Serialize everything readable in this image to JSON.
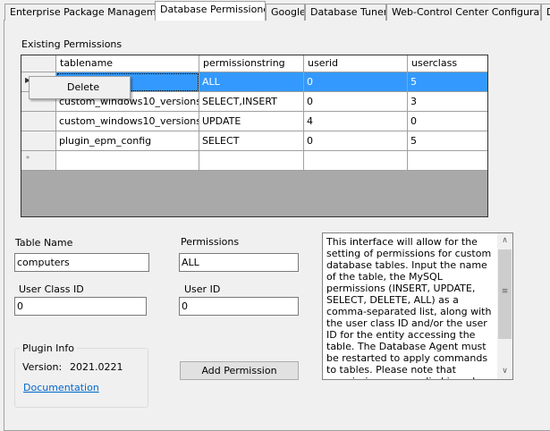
{
  "tabs": [
    {
      "label": "Enterprise Package Management",
      "selected": false
    },
    {
      "label": "Database Permissioner",
      "selected": true
    },
    {
      "label": "Google",
      "selected": false
    },
    {
      "label": "Database Tuner",
      "selected": false
    },
    {
      "label": "Web-Control Center Configuration",
      "selected": false
    },
    {
      "label": "D",
      "selected": false
    }
  ],
  "existing_label": "Existing Permissions",
  "grid": {
    "columns": [
      "tablename",
      "permissionstring",
      "userid",
      "userclass"
    ],
    "rows": [
      [
        "",
        "ALL",
        "0",
        "5"
      ],
      [
        "custom_windows10_versions",
        "SELECT,INSERT",
        "0",
        "3"
      ],
      [
        "custom_windows10_versions",
        "UPDATE",
        "4",
        "0"
      ],
      [
        "plugin_epm_config",
        "SELECT",
        "0",
        "5"
      ]
    ],
    "new_row_marker": "*",
    "current_row_marker": "▶"
  },
  "context_menu": {
    "items": [
      "Delete"
    ]
  },
  "form": {
    "table_name_label": "Table Name",
    "table_name_value": "computers",
    "permissions_label": "Permissions",
    "permissions_value": "ALL",
    "user_class_label": "User Class ID",
    "user_class_value": "0",
    "user_id_label": "User ID",
    "user_id_value": "0",
    "add_button": "Add Permission"
  },
  "plugin_info": {
    "title": "Plugin Info",
    "version_label": "Version:",
    "version": "2021.0221",
    "doc_link": "Documentation"
  },
  "description": "This interface will allow for the setting of permissions for custom database tables. Input the name of the table, the MySQL permissions (INSERT, UPDATE, SELECT, DELETE, ALL) as a comma-separated list, along with the user class ID and/or the user ID for the entity accessing the table. The Database Agent must be restarted to apply commands to tables. Please note that permissions are applied in order, and the last matching",
  "colors": {
    "selection": "#3399ff",
    "link": "#0066cc"
  }
}
